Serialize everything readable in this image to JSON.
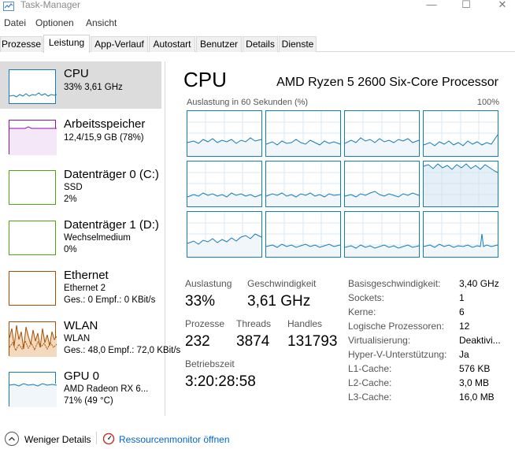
{
  "window": {
    "title": "Task-Manager"
  },
  "menu": [
    "Datei",
    "Optionen",
    "Ansicht"
  ],
  "tabs": [
    "Prozesse",
    "Leistung",
    "App-Verlauf",
    "Autostart",
    "Benutzer",
    "Details",
    "Dienste"
  ],
  "active_tab": "Leistung",
  "sidebar": {
    "items": [
      {
        "name": "CPU",
        "line1": "33% 3,61 GHz",
        "line2": "",
        "color": "#117dbb"
      },
      {
        "name": "Arbeitsspeicher",
        "line1": "12,4/15,9 GB (78%)",
        "line2": "",
        "color": "#8b12ae"
      },
      {
        "name": "Datenträger 0 (C:)",
        "line1": "SSD",
        "line2": "2%",
        "color": "#4da60c"
      },
      {
        "name": "Datenträger 1 (D:)",
        "line1": "Wechselmedium",
        "line2": "0%",
        "color": "#4da60c"
      },
      {
        "name": "Ethernet",
        "line1": "Ethernet 2",
        "line2": "Ges.: 0 Empf.: 0 KBit/s",
        "color": "#a74f01"
      },
      {
        "name": "WLAN",
        "line1": "WLAN",
        "line2": "Ges.: 48,0 Empf.: 72,0 KBit/s",
        "color": "#a74f01"
      },
      {
        "name": "GPU 0",
        "line1": "AMD Radeon RX 6...",
        "line2": "71% (49 °C)",
        "color": "#117dbb"
      }
    ]
  },
  "main": {
    "title": "CPU",
    "model": "AMD Ryzen 5 2600 Six-Core Processor",
    "graph_label": "Auslastung in 60 Sekunden (%)",
    "graph_max": "100%",
    "stats": {
      "auslastung_label": "Auslastung",
      "auslastung_value": "33%",
      "geschwindigkeit_label": "Geschwindigkeit",
      "geschwindigkeit_value": "3,61 GHz",
      "prozesse_label": "Prozesse",
      "prozesse_value": "232",
      "threads_label": "Threads",
      "threads_value": "3874",
      "handles_label": "Handles",
      "handles_value": "131793",
      "betriebszeit_label": "Betriebszeit",
      "betriebszeit_value": "3:20:28:58"
    },
    "details": [
      {
        "key": "Basisgeschwindigkeit:",
        "value": "3,40 GHz"
      },
      {
        "key": "Sockets:",
        "value": "1"
      },
      {
        "key": "Kerne:",
        "value": "6"
      },
      {
        "key": "Logische Prozessoren:",
        "value": "12"
      },
      {
        "key": "Virtualisierung:",
        "value": "Deaktivi..."
      },
      {
        "key": "Hyper-V-Unterstützung:",
        "value": "Ja"
      },
      {
        "key": "L1-Cache:",
        "value": "576 KB"
      },
      {
        "key": "L2-Cache:",
        "value": "3,0 MB"
      },
      {
        "key": "L3-Cache:",
        "value": "16,0 MB"
      }
    ]
  },
  "footer": {
    "fewer_details": "Weniger Details",
    "resource_monitor": "Ressourcenmonitor öffnen"
  },
  "colors": {
    "cpu_line": "#117dbb",
    "cpu_fill": "#f1f6fa",
    "selected_bg": "#dcdcdc",
    "link": "#0066cc"
  }
}
